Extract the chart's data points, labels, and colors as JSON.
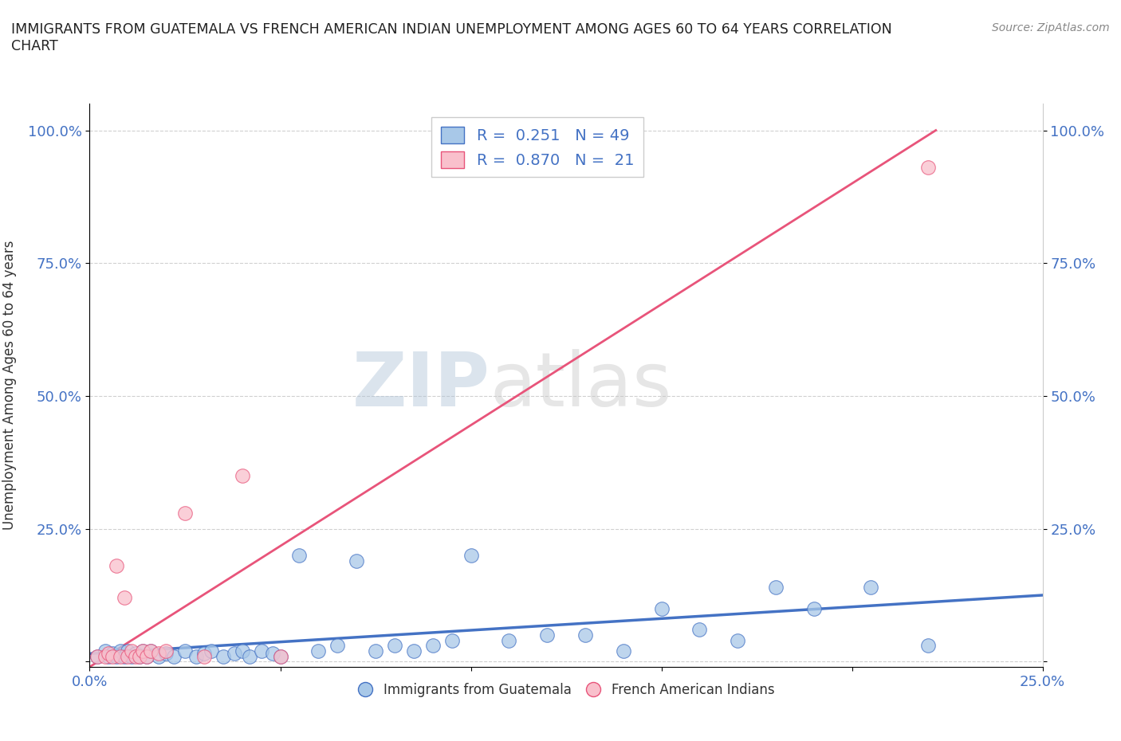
{
  "title": "IMMIGRANTS FROM GUATEMALA VS FRENCH AMERICAN INDIAN UNEMPLOYMENT AMONG AGES 60 TO 64 YEARS CORRELATION\nCHART",
  "source": "Source: ZipAtlas.com",
  "ylabel": "Unemployment Among Ages 60 to 64 years",
  "xlim": [
    0.0,
    0.25
  ],
  "ylim": [
    -0.01,
    1.05
  ],
  "x_ticks": [
    0.0,
    0.05,
    0.1,
    0.15,
    0.2,
    0.25
  ],
  "x_tick_labels": [
    "0.0%",
    "",
    "",
    "",
    "",
    "25.0%"
  ],
  "y_ticks": [
    0.0,
    0.25,
    0.5,
    0.75,
    1.0
  ],
  "y_tick_labels": [
    "",
    "25.0%",
    "50.0%",
    "75.0%",
    "100.0%"
  ],
  "color_blue": "#a8c8e8",
  "color_pink": "#f9c0cc",
  "line_blue": "#4472c4",
  "line_pink": "#e8547a",
  "watermark_zip": "ZIP",
  "watermark_atlas": "atlas",
  "blue_scatter_x": [
    0.002,
    0.004,
    0.005,
    0.006,
    0.007,
    0.008,
    0.009,
    0.01,
    0.011,
    0.012,
    0.013,
    0.014,
    0.015,
    0.016,
    0.018,
    0.02,
    0.022,
    0.025,
    0.028,
    0.03,
    0.032,
    0.035,
    0.038,
    0.04,
    0.042,
    0.045,
    0.048,
    0.05,
    0.055,
    0.06,
    0.065,
    0.07,
    0.075,
    0.08,
    0.085,
    0.09,
    0.095,
    0.1,
    0.11,
    0.12,
    0.13,
    0.14,
    0.15,
    0.16,
    0.17,
    0.18,
    0.19,
    0.205,
    0.22
  ],
  "blue_scatter_y": [
    0.01,
    0.02,
    0.01,
    0.015,
    0.01,
    0.02,
    0.01,
    0.02,
    0.01,
    0.015,
    0.01,
    0.02,
    0.01,
    0.02,
    0.01,
    0.015,
    0.01,
    0.02,
    0.01,
    0.015,
    0.02,
    0.01,
    0.015,
    0.02,
    0.01,
    0.02,
    0.015,
    0.01,
    0.2,
    0.02,
    0.03,
    0.19,
    0.02,
    0.03,
    0.02,
    0.03,
    0.04,
    0.2,
    0.04,
    0.05,
    0.05,
    0.02,
    0.1,
    0.06,
    0.04,
    0.14,
    0.1,
    0.14,
    0.03
  ],
  "pink_scatter_x": [
    0.002,
    0.004,
    0.005,
    0.006,
    0.007,
    0.008,
    0.009,
    0.01,
    0.011,
    0.012,
    0.013,
    0.014,
    0.015,
    0.016,
    0.018,
    0.02,
    0.025,
    0.03,
    0.04,
    0.05,
    0.22
  ],
  "pink_scatter_y": [
    0.01,
    0.01,
    0.015,
    0.01,
    0.18,
    0.01,
    0.12,
    0.01,
    0.02,
    0.01,
    0.01,
    0.02,
    0.01,
    0.02,
    0.015,
    0.02,
    0.28,
    0.01,
    0.35,
    0.01,
    0.93
  ],
  "blue_line_x0": 0.0,
  "blue_line_x1": 0.25,
  "blue_line_y0": 0.015,
  "blue_line_y1": 0.125,
  "pink_line_x0": 0.0,
  "pink_line_x1": 0.222,
  "pink_line_y0": -0.01,
  "pink_line_y1": 1.0
}
